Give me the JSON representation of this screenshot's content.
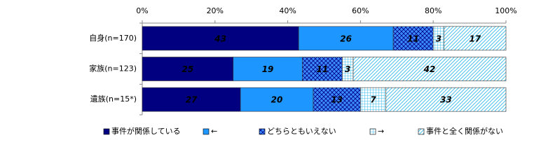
{
  "chart_data": {
    "type": "stacked-bar-horizontal",
    "categories": [
      "自身(n=170)",
      "家族(n=123)",
      "遺族(n=15*)"
    ],
    "series": [
      {
        "name": "事件が関係している",
        "color": "#000080",
        "pattern": "solid",
        "values": [
          43,
          25,
          27
        ]
      },
      {
        "name": "←",
        "color": "#1e96ff",
        "pattern": "solid",
        "values": [
          26,
          19,
          20
        ]
      },
      {
        "name": "どちらともいえない",
        "color": "#3c8cff",
        "pattern": "crosshatch",
        "values": [
          11,
          11,
          13
        ]
      },
      {
        "name": "→",
        "color": "#33bbee",
        "pattern": "grid",
        "values": [
          3,
          3,
          7
        ]
      },
      {
        "name": "事件と全く関係がない",
        "color": "#33bbee",
        "pattern": "diagonal",
        "values": [
          17,
          42,
          33
        ]
      }
    ],
    "xlim": [
      0,
      100
    ],
    "xticks": [
      {
        "value": 0,
        "label": "0%"
      },
      {
        "value": 20,
        "label": "20%"
      },
      {
        "value": 40,
        "label": "40%"
      },
      {
        "value": 60,
        "label": "60%"
      },
      {
        "value": 80,
        "label": "80%"
      },
      {
        "value": 100,
        "label": "100%"
      }
    ],
    "legend": "bottom"
  }
}
